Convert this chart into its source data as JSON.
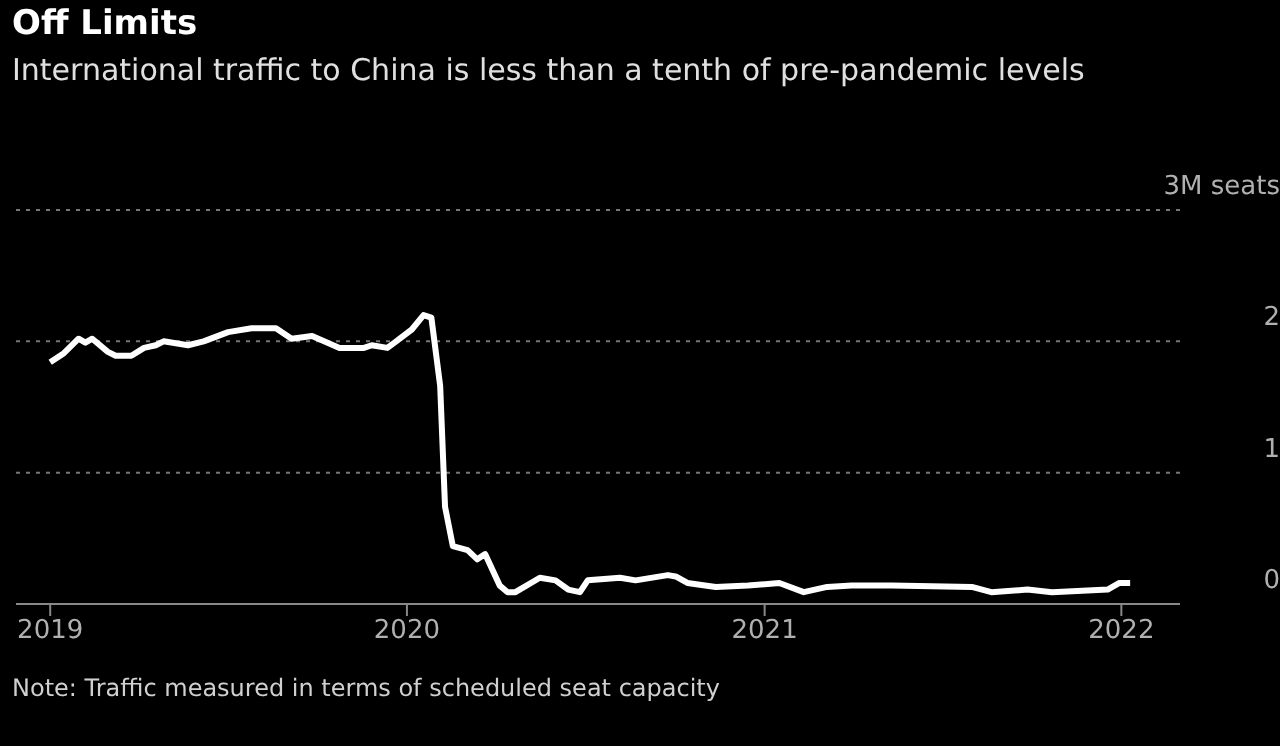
{
  "chart_data": {
    "type": "line",
    "title": "Off Limits",
    "subtitle": "International traffic to China is less than a tenth of pre-pandemic levels",
    "annotations": [
      "Note: Traffic measured in terms of scheduled seat capacity"
    ],
    "x": [
      "2019-01-01",
      "2019-01-15",
      "2019-01-30",
      "2019-02-06",
      "2019-02-13",
      "2019-03-01",
      "2019-03-09",
      "2019-03-25",
      "2019-04-07",
      "2019-04-19",
      "2019-04-27",
      "2019-05-22",
      "2019-06-07",
      "2019-07-02",
      "2019-07-26",
      "2019-08-20",
      "2019-09-05",
      "2019-09-26",
      "2019-10-24",
      "2019-11-18",
      "2019-11-26",
      "2019-12-12",
      "2019-12-21",
      "2020-01-06",
      "2020-01-18",
      "2020-01-26",
      "2020-02-04",
      "2020-02-09",
      "2020-02-17",
      "2020-03-03",
      "2020-03-13",
      "2020-03-21",
      "2020-04-05",
      "2020-04-13",
      "2020-04-21",
      "2020-05-16",
      "2020-06-01",
      "2020-06-14",
      "2020-06-26",
      "2020-07-04",
      "2020-08-06",
      "2020-08-22",
      "2020-09-24",
      "2020-10-02",
      "2020-10-14",
      "2020-11-12",
      "2020-12-15",
      "2021-01-16",
      "2021-02-10",
      "2021-03-06",
      "2021-03-31",
      "2021-05-11",
      "2021-08-01",
      "2021-08-21",
      "2021-09-27",
      "2021-10-22",
      "2021-12-18",
      "2021-12-30",
      "2022-01-10"
    ],
    "series": [
      {
        "color": "#ffffff",
        "values": [
          1.84,
          1.91,
          2.02,
          1.99,
          2.02,
          1.92,
          1.89,
          1.89,
          1.95,
          1.97,
          2.0,
          1.97,
          2.0,
          2.07,
          2.1,
          2.1,
          2.02,
          2.04,
          1.95,
          1.95,
          1.97,
          1.95,
          2.0,
          2.09,
          2.2,
          2.18,
          1.66,
          0.74,
          0.44,
          0.41,
          0.34,
          0.38,
          0.14,
          0.09,
          0.09,
          0.2,
          0.18,
          0.11,
          0.09,
          0.18,
          0.2,
          0.18,
          0.22,
          0.21,
          0.16,
          0.13,
          0.14,
          0.16,
          0.09,
          0.13,
          0.14,
          0.14,
          0.13,
          0.09,
          0.11,
          0.09,
          0.11,
          0.16,
          0.16
        ]
      }
    ],
    "xlim": [
      "2018-11-27",
      "2022-03-02"
    ],
    "xticks": [
      {
        "value": "2019-01-01",
        "label": "2019"
      },
      {
        "value": "2020-01-01",
        "label": "2020"
      },
      {
        "value": "2021-01-01",
        "label": "2021"
      },
      {
        "value": "2022-01-01",
        "label": "2022"
      }
    ],
    "ylim": [
      0,
      3
    ],
    "yticks": [
      0,
      1,
      2,
      {
        "value": 3,
        "label": "3M seats"
      }
    ],
    "grid": "y"
  }
}
